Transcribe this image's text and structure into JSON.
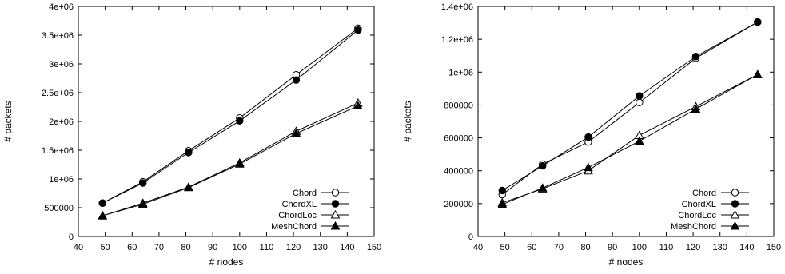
{
  "chart_data": [
    {
      "type": "line",
      "title": "",
      "xlabel": "# nodes",
      "ylabel": "# packets",
      "xlim": [
        40,
        150
      ],
      "ylim": [
        0,
        4000000
      ],
      "xticks": [
        40,
        50,
        60,
        70,
        80,
        90,
        100,
        110,
        120,
        130,
        140,
        150
      ],
      "yticks": [
        0,
        500000,
        1000000,
        1500000,
        2000000,
        2500000,
        3000000,
        3500000,
        4000000
      ],
      "ytick_labels": [
        "0",
        "500000",
        "1e+06",
        "1.5e+06",
        "2e+06",
        "2.5e+06",
        "3e+06",
        "3.5e+06",
        "4e+06"
      ],
      "grid": false,
      "legend_position": "bottom-right",
      "x": [
        49,
        64,
        81,
        100,
        121,
        144
      ],
      "series": [
        {
          "name": "Chord",
          "marker": "open-circle",
          "values": [
            580000,
            950000,
            1490000,
            2060000,
            2810000,
            3620000
          ]
        },
        {
          "name": "ChordXL",
          "marker": "filled-circle",
          "values": [
            580000,
            930000,
            1460000,
            2010000,
            2720000,
            3590000
          ]
        },
        {
          "name": "ChordLoc",
          "marker": "open-triangle",
          "values": [
            360000,
            580000,
            860000,
            1280000,
            1830000,
            2320000
          ]
        },
        {
          "name": "MeshChord",
          "marker": "filled-triangle",
          "values": [
            360000,
            560000,
            850000,
            1260000,
            1790000,
            2270000
          ]
        }
      ]
    },
    {
      "type": "line",
      "title": "",
      "xlabel": "# nodes",
      "ylabel": "# packets",
      "xlim": [
        40,
        150
      ],
      "ylim": [
        0,
        1400000
      ],
      "xticks": [
        40,
        50,
        60,
        70,
        80,
        90,
        100,
        110,
        120,
        130,
        140,
        150
      ],
      "yticks": [
        0,
        200000,
        400000,
        600000,
        800000,
        1000000,
        1200000,
        1400000
      ],
      "ytick_labels": [
        "0",
        "200000",
        "400000",
        "600000",
        "800000",
        "1e+06",
        "1.2e+06",
        "1.4e+06"
      ],
      "grid": false,
      "legend_position": "bottom-right",
      "x": [
        49,
        64,
        81,
        100,
        121,
        144
      ],
      "series": [
        {
          "name": "Chord",
          "marker": "open-circle",
          "values": [
            255000,
            440000,
            575000,
            815000,
            1085000,
            1305000
          ]
        },
        {
          "name": "ChordXL",
          "marker": "filled-circle",
          "values": [
            280000,
            430000,
            605000,
            855000,
            1095000,
            1305000
          ]
        },
        {
          "name": "ChordLoc",
          "marker": "open-triangle",
          "values": [
            205000,
            290000,
            400000,
            615000,
            790000,
            985000
          ]
        },
        {
          "name": "MeshChord",
          "marker": "filled-triangle",
          "values": [
            195000,
            295000,
            420000,
            580000,
            775000,
            985000
          ]
        }
      ]
    }
  ]
}
